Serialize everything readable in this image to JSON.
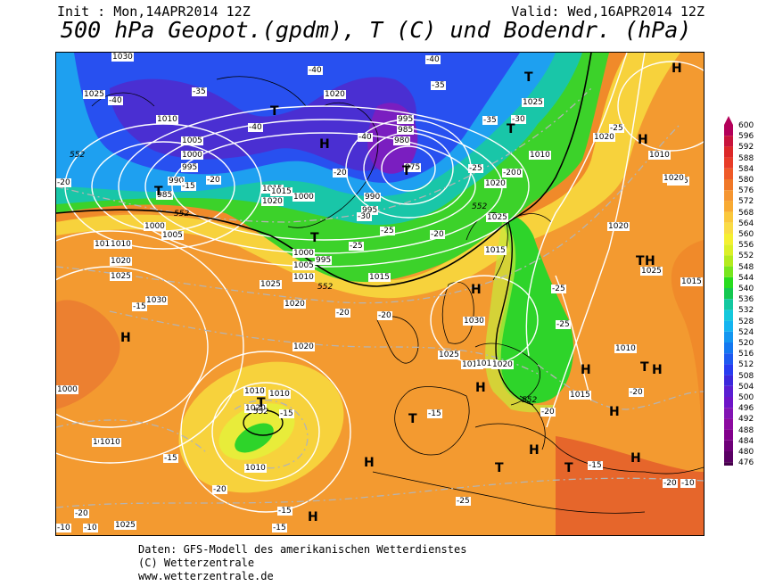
{
  "header": {
    "init": "Init : Mon,14APR2014 12Z",
    "valid": "Valid: Wed,16APR2014 12Z",
    "title": "500 hPa Geopot.(gpdm), T (C) und Bodendr. (hPa)"
  },
  "footer": {
    "line1": "Daten: GFS-Modell des amerikanischen Wetterdienstes",
    "line2": "(C) Wetterzentrale",
    "line3": "www.wetterzentrale.de"
  },
  "legend": {
    "levels": [
      "600",
      "596",
      "592",
      "588",
      "584",
      "580",
      "576",
      "572",
      "568",
      "564",
      "560",
      "556",
      "552",
      "548",
      "544",
      "540",
      "536",
      "532",
      "528",
      "524",
      "520",
      "516",
      "512",
      "508",
      "504",
      "500",
      "496",
      "492",
      "488",
      "484",
      "480",
      "476"
    ],
    "colors": [
      "#b4005a",
      "#c8143c",
      "#dc2828",
      "#e83c28",
      "#ef5a28",
      "#f07828",
      "#f59632",
      "#f8aa32",
      "#fac83c",
      "#fadc46",
      "#f5f032",
      "#dcf028",
      "#b4eb1e",
      "#78e61e",
      "#28dc1e",
      "#14c850",
      "#14c8a0",
      "#14c8dc",
      "#14b4f0",
      "#1496f0",
      "#1478f0",
      "#1e5af0",
      "#283cf0",
      "#3c28dc",
      "#5a1ed2",
      "#6e14c8",
      "#8214b4",
      "#8c0aa0",
      "#82008c",
      "#6e0078",
      "#5a0064",
      "#46004b"
    ]
  },
  "map": {
    "isobar_labels": [
      "1030",
      "1025",
      "1010",
      "1005",
      "1000",
      "995",
      "990",
      "985",
      "1010",
      "1000",
      "1005",
      "1010",
      "1020",
      "1025",
      "1030",
      "1020",
      "1010",
      "1005",
      "1000",
      "995",
      "1000",
      "995",
      "985",
      "980",
      "975",
      "990",
      "995",
      "1015",
      "1020",
      "1025",
      "1015",
      "1010",
      "1020",
      "1015",
      "1010",
      "1020",
      "1025",
      "1030",
      "1025",
      "1015",
      "1010",
      "1020",
      "1025",
      "1020",
      "1015",
      "1010",
      "1020",
      "1025",
      "1020",
      "1015",
      "1010",
      "1000",
      "1030",
      "1010",
      "1020",
      "1010",
      "1015",
      "1010",
      "1015",
      "1020",
      "1025",
      "1030",
      "1025"
    ],
    "temp_labels": [
      "-40",
      "-35",
      "-40",
      "-40",
      "-40",
      "-40",
      "-35",
      "-30",
      "-25",
      "-20",
      "-20",
      "-15",
      "-15",
      "-20",
      "-25",
      "-30",
      "-25",
      "-20",
      "-15",
      "-20",
      "-25",
      "-20",
      "-15",
      "-25",
      "-20",
      "-15",
      "-20",
      "-15",
      "-10",
      "-10",
      "-15",
      "-20",
      "-20",
      "-25",
      "-20",
      "-25",
      "-30",
      "-35",
      "-20",
      "-10",
      "-15"
    ],
    "geopot_labels": [
      "552",
      "552",
      "552",
      "552",
      "552",
      "552"
    ],
    "highs": [
      "H",
      "H",
      "H",
      "H",
      "H",
      "H",
      "H",
      "H",
      "H",
      "H",
      "H",
      "H",
      "H",
      "H"
    ],
    "lows": [
      "T",
      "T",
      "T",
      "T",
      "T",
      "T",
      "T",
      "T",
      "T",
      "T",
      "T",
      "T"
    ]
  }
}
